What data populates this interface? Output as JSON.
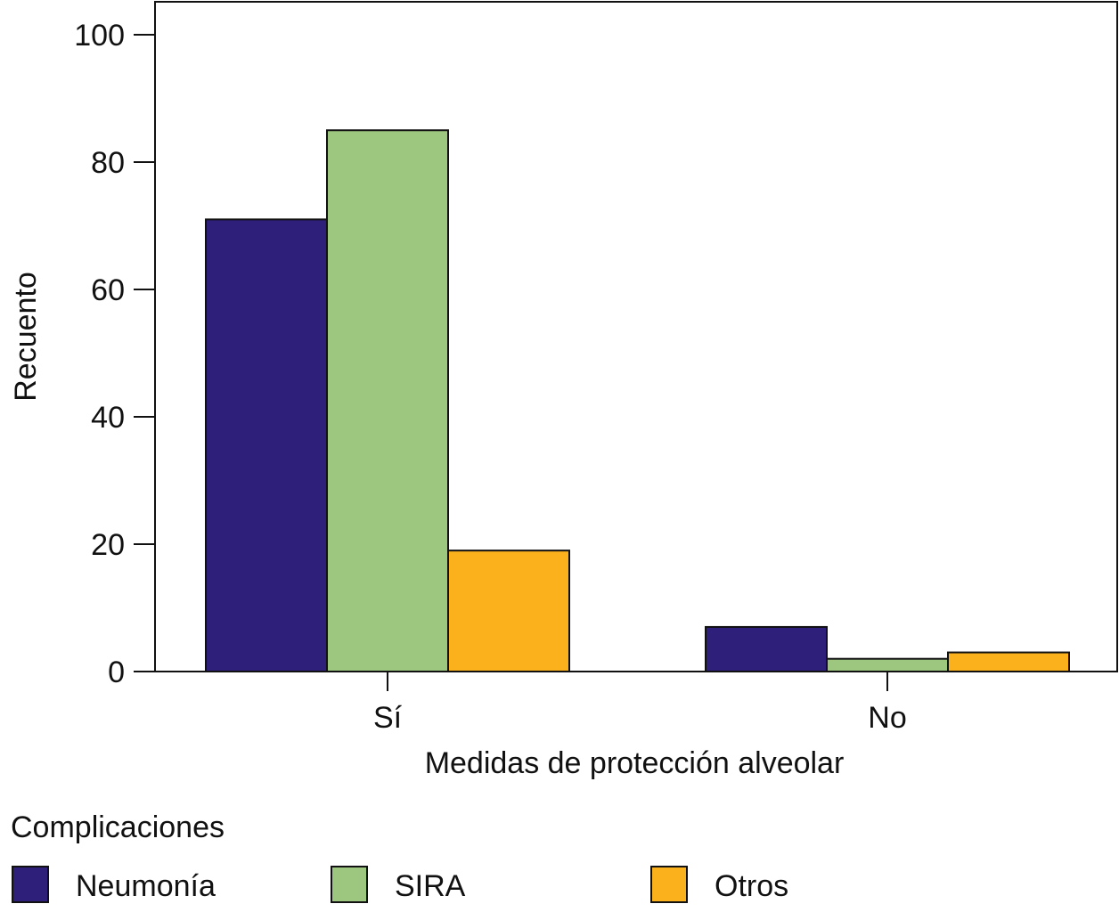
{
  "chart_data": {
    "type": "bar",
    "title": "",
    "xlabel": "Medidas de protección alveolar",
    "ylabel": "Recuento",
    "ylim": [
      0,
      100
    ],
    "yticks": [
      0,
      20,
      40,
      60,
      80,
      100
    ],
    "categories": [
      "Sí",
      "No"
    ],
    "legend_title": "Complicaciones",
    "legend_position": "bottom",
    "grid": false,
    "series": [
      {
        "name": "Neumonía",
        "color": "#2e207a",
        "values": [
          71,
          7
        ]
      },
      {
        "name": "SIRA",
        "color": "#9dc77f",
        "values": [
          85,
          2
        ]
      },
      {
        "name": "Otros",
        "color": "#fbb11c",
        "values": [
          19,
          3
        ]
      }
    ]
  }
}
